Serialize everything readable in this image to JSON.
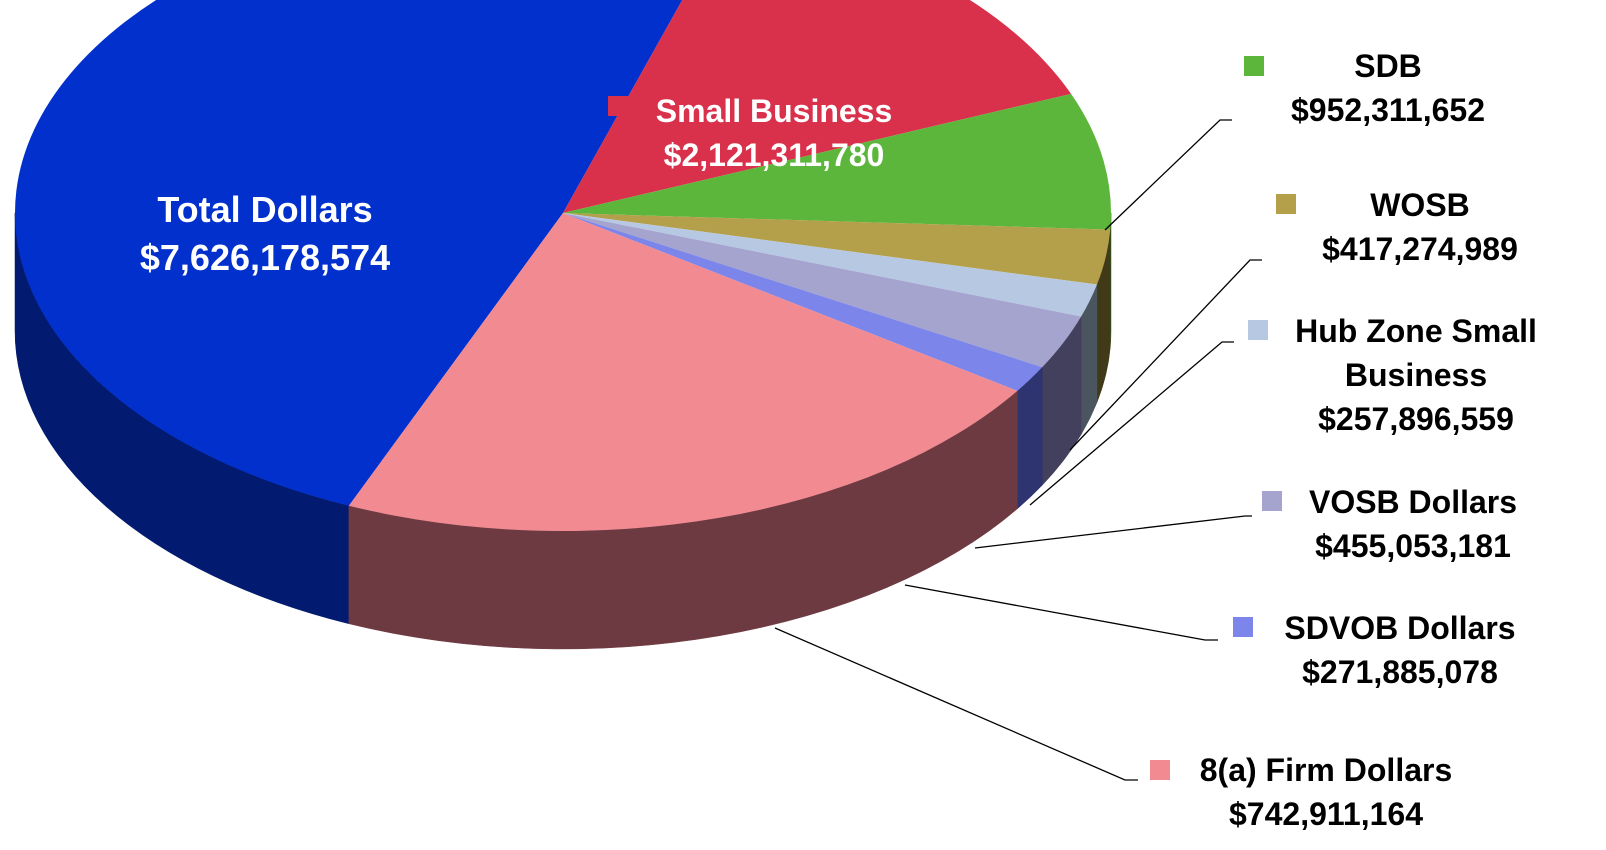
{
  "chart_data": {
    "type": "pie",
    "style": "3d-exploded-pie",
    "slices": [
      {
        "key": "total",
        "label_line1": "Total Dollars",
        "label_line2": "",
        "value_text": "$7,626,178,574",
        "value": 7626178574,
        "color": "#0230CC",
        "side_color": "#021A70"
      },
      {
        "key": "small",
        "label_line1": "Small Business",
        "label_line2": "",
        "value_text": "$2,121,311,780",
        "value": 2121311780,
        "color": "#D9304B",
        "side_color": "#7A1A2A"
      },
      {
        "key": "sdb",
        "label_line1": "SDB",
        "label_line2": "",
        "value_text": "$952,311,652",
        "value": 952311652,
        "color": "#5DB63C",
        "side_color": "#2F5E1E"
      },
      {
        "key": "wosb",
        "label_line1": "WOSB",
        "label_line2": "",
        "value_text": "$417,274,989",
        "value": 417274989,
        "color": "#B4A04A",
        "side_color": "#403A18"
      },
      {
        "key": "hubzone",
        "label_line1": "Hub Zone Small",
        "label_line2": "Business",
        "value_text": "$257,896,559",
        "value": 257896559,
        "color": "#B7C9E2",
        "side_color": "#4A5560"
      },
      {
        "key": "vosb",
        "label_line1": "VOSB Dollars",
        "label_line2": "",
        "value_text": "$455,053,181",
        "value": 455053181,
        "color": "#A4A4CE",
        "side_color": "#42405C"
      },
      {
        "key": "sdvob",
        "label_line1": "SDVOB  Dollars",
        "label_line2": "",
        "value_text": "$271,885,078",
        "value": 271885078,
        "color": "#7C85EA",
        "side_color": "#2E3470"
      },
      {
        "key": "eighta",
        "label_line1": "8(a) Firm Dollars",
        "label_line2": "",
        "value_text": "$742,911,164",
        "value": 742911164,
        "color": "#F28A92",
        "side_color": "#6E3A42"
      }
    ],
    "legend_marker_shape": "square",
    "title": ""
  }
}
